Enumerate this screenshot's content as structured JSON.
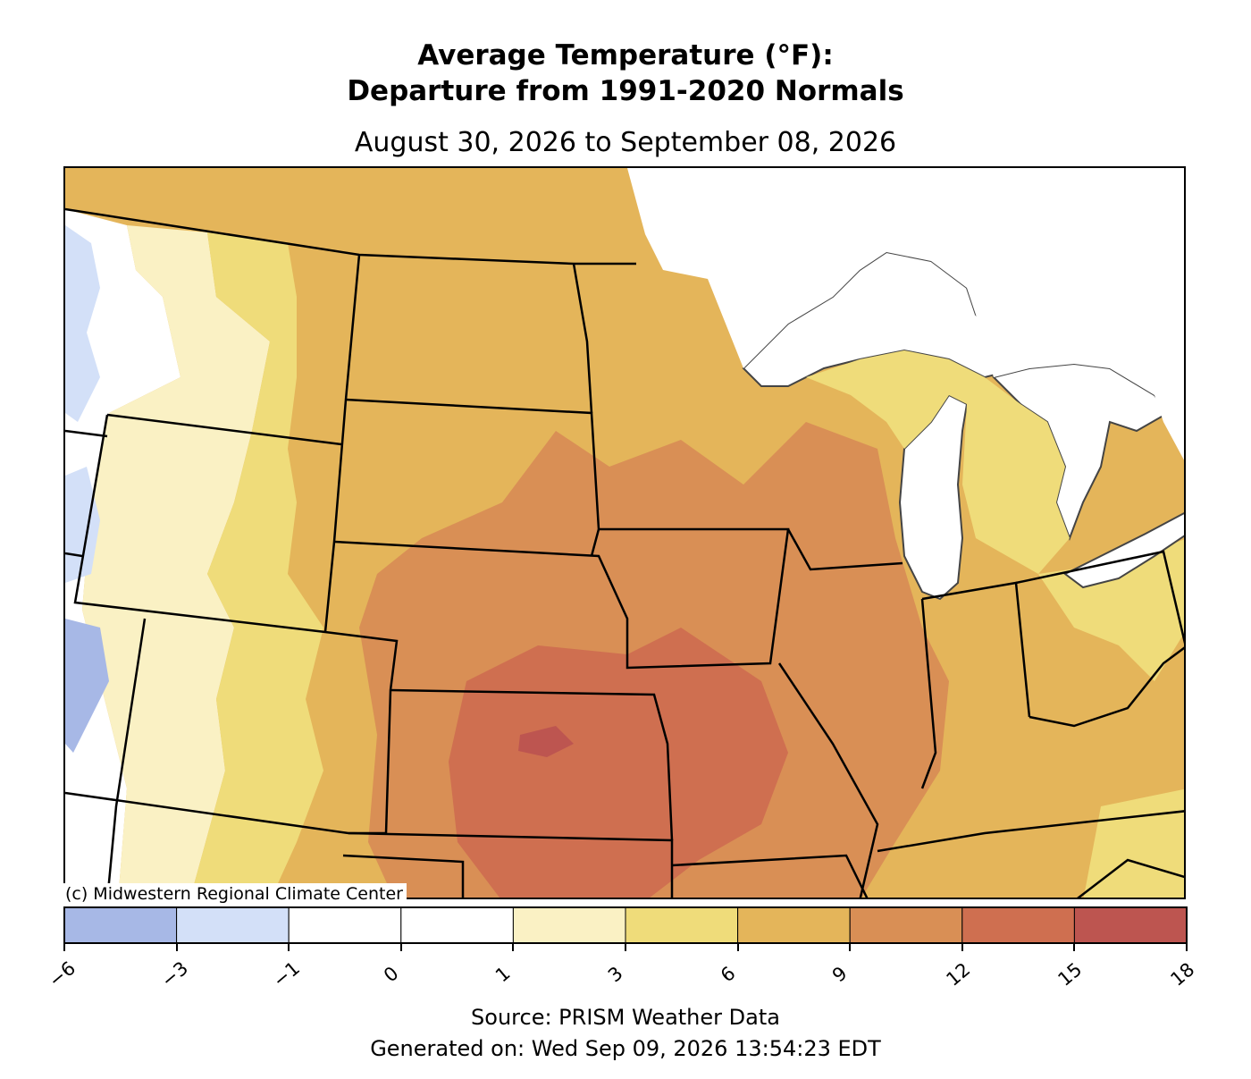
{
  "header": {
    "title_line1": "Average Temperature (°F):",
    "title_line2": "Departure from 1991-2020 Normals",
    "date_range": "August 30, 2026 to September 08, 2026"
  },
  "map": {
    "credit": "(c) Midwestern Regional Climate Center",
    "lake_color": "#ffffff",
    "border_color": "#000000"
  },
  "legend": {
    "ticks": [
      "−6",
      "−3",
      "−1",
      "0",
      "1",
      "3",
      "6",
      "9",
      "12",
      "15",
      "18"
    ],
    "colors": [
      "#a7b8e6",
      "#d3e0f8",
      "#ffffff",
      "#ffffff",
      "#faf1c4",
      "#efdc7a",
      "#e4b55a",
      "#d98f55",
      "#cf6f50",
      "#bd5550"
    ]
  },
  "footer": {
    "source": "Source: PRISM Weather Data",
    "generated": "Generated on: Wed Sep 09, 2026 13:54:23 EDT"
  }
}
